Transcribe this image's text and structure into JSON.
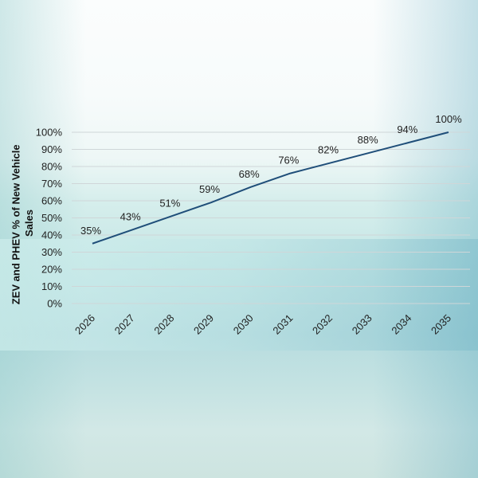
{
  "chart_data": {
    "type": "line",
    "title": "",
    "xlabel": "",
    "ylabel_lines": [
      "ZEV and PHEV % of New Vehicle",
      "Sales"
    ],
    "categories": [
      "2026",
      "2027",
      "2028",
      "2029",
      "2030",
      "2031",
      "2032",
      "2033",
      "2034",
      "2035"
    ],
    "series": [
      {
        "values": [
          35,
          43,
          51,
          59,
          68,
          76,
          82,
          88,
          94,
          100
        ]
      }
    ],
    "data_labels": [
      "35%",
      "43%",
      "51%",
      "59%",
      "68%",
      "76%",
      "82%",
      "88%",
      "94%",
      "100%"
    ],
    "y_ticks": [
      "0%",
      "10%",
      "20%",
      "30%",
      "40%",
      "50%",
      "60%",
      "70%",
      "80%",
      "90%",
      "100%"
    ],
    "ylim": [
      0,
      100
    ],
    "grid": true,
    "legend": "none",
    "line_color": "#1f4e79",
    "grid_color": "#cfd6d8"
  }
}
